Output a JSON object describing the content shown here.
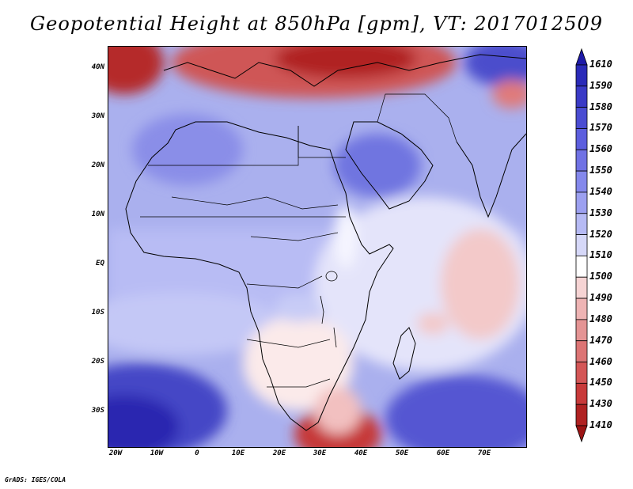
{
  "title": "Geopotential Height at 850hPa [gpm], VT: 2017012509",
  "footer": "GrADS: IGES/COLA",
  "axes": {
    "lat_labels": [
      "40N",
      "30N",
      "20N",
      "10N",
      "EQ",
      "10S",
      "20S",
      "30S"
    ],
    "lon_labels": [
      "20W",
      "10W",
      "0",
      "10E",
      "20E",
      "30E",
      "40E",
      "50E",
      "60E",
      "70E"
    ],
    "lat_range": [
      -37,
      45
    ],
    "lon_range": [
      -23,
      79
    ]
  },
  "colorbar": {
    "levels": [
      "1610",
      "1590",
      "1580",
      "1570",
      "1560",
      "1550",
      "1540",
      "1530",
      "1520",
      "1510",
      "1500",
      "1490",
      "1480",
      "1470",
      "1460",
      "1450",
      "1430",
      "1410"
    ],
    "colors": [
      "#1e1aa8",
      "#2a2ab8",
      "#3a3ac6",
      "#4a4cd2",
      "#5c5ede",
      "#7072e4",
      "#8488ec",
      "#9ca0f0",
      "#b6baf4",
      "#d6d8f8",
      "#ffffff",
      "#f6d4d4",
      "#eeb4b4",
      "#e49494",
      "#dc7474",
      "#d45656",
      "#c83a3a",
      "#b02222",
      "#9c1414"
    ]
  },
  "fields": {
    "land": "Africa, Arabian Peninsula, Europe, Asia outlines",
    "height_units": "gpm"
  }
}
